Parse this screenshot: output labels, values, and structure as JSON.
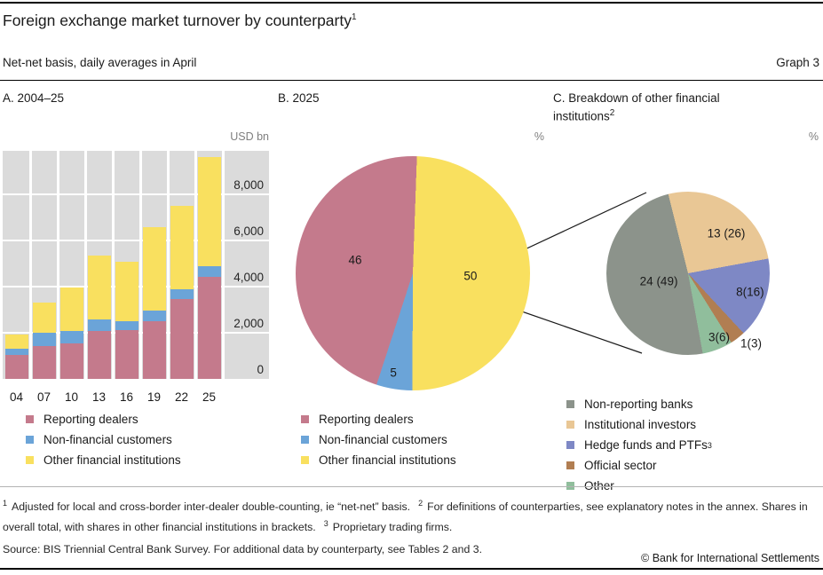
{
  "header": {
    "title": "Foreign exchange market turnover by counterparty",
    "title_sup": "1",
    "subtitle": "Net-net basis, daily averages in April",
    "graph_label": "Graph 3"
  },
  "colors": {
    "reporting_dealers": "#C47A8C",
    "non_financial_customers": "#6BA4D8",
    "other_financial_institutions": "#F9E05F",
    "non_reporting_banks": "#8C938B",
    "institutional_investors": "#E9C795",
    "hedge_funds_ptfs": "#7E88C5",
    "official_sector": "#B17E52",
    "other": "#90BE9C",
    "plot_background": "#DBDBDB",
    "gridline": "#FFFFFF"
  },
  "chart_data": [
    {
      "panel": "A",
      "type": "bar",
      "stacked": true,
      "title": "A. 2004–25",
      "unit": "USD bn",
      "categories": [
        "04",
        "07",
        "10",
        "13",
        "16",
        "19",
        "22",
        "25"
      ],
      "series": [
        {
          "name": "Reporting dealers",
          "color": "#C47A8C",
          "values": [
            1025,
            1429,
            1549,
            2089,
            2128,
            2501,
            3453,
            4416
          ]
        },
        {
          "name": "Non-financial customers",
          "color": "#6BA4D8",
          "values": [
            271,
            565,
            517,
            482,
            355,
            461,
            450,
            480
          ]
        },
        {
          "name": "Other financial institutions",
          "color": "#F9E05F",
          "values": [
            638,
            1330,
            1907,
            2786,
            2583,
            3619,
            3603,
            4704
          ]
        }
      ],
      "ylim": [
        0,
        9885
      ],
      "yticks": [
        {
          "value": 0,
          "label": "0"
        },
        {
          "value": 2000,
          "label": "2,000"
        },
        {
          "value": 4000,
          "label": "4,000"
        },
        {
          "value": 6000,
          "label": "6,000"
        },
        {
          "value": 8000,
          "label": "8,000"
        }
      ],
      "grid": true,
      "legend_position": "below",
      "legend": [
        {
          "label": "Reporting dealers",
          "color": "#C47A8C"
        },
        {
          "label": "Non-financial customers",
          "color": "#6BA4D8"
        },
        {
          "label": "Other financial institutions",
          "color": "#F9E05F"
        }
      ]
    },
    {
      "panel": "B",
      "type": "pie",
      "title": "B. 2025",
      "unit": "%",
      "start_angle_deg": 2,
      "slices": [
        {
          "name": "Other financial institutions",
          "value": 50,
          "label": "50",
          "color": "#F9E05F",
          "label_pos": [
            74.6,
            51.0
          ]
        },
        {
          "name": "Non-financial customers",
          "value": 5,
          "label": "5",
          "color": "#6BA4D8",
          "label_pos": [
            41.7,
            92.5
          ]
        },
        {
          "name": "Reporting dealers",
          "value": 46,
          "label": "46",
          "color": "#C47A8C",
          "label_pos": [
            25.4,
            44.3
          ]
        }
      ],
      "legend": [
        {
          "label": "Reporting dealers",
          "color": "#C47A8C"
        },
        {
          "label": "Non-financial customers",
          "color": "#6BA4D8"
        },
        {
          "label": "Other financial institutions",
          "color": "#F9E05F"
        }
      ]
    },
    {
      "panel": "C",
      "type": "pie",
      "title": "C. Breakdown of other financial institutions",
      "title_sup": "2",
      "unit": "%",
      "start_angle_deg": -14,
      "slices": [
        {
          "name": "Institutional investors",
          "overall_share": 13,
          "value": 26,
          "label": "13 (26)",
          "color": "#E9C795",
          "label_pos": [
            73.4,
            25.5
          ]
        },
        {
          "name": "Hedge funds and PTFs",
          "overall_share": 8,
          "value": 16,
          "label": "8(16)",
          "color": "#7E88C5",
          "label_pos": [
            88.0,
            61.4
          ]
        },
        {
          "name": "Official sector",
          "overall_share": 1,
          "value": 3,
          "label": "1(3)",
          "color": "#B17E52",
          "label_pos": [
            88.6,
            92.9
          ]
        },
        {
          "name": "Other",
          "overall_share": 3,
          "value": 6,
          "label": "3(6)",
          "color": "#90BE9C",
          "label_pos": [
            69.0,
            89.1
          ]
        },
        {
          "name": "Non-reporting banks",
          "overall_share": 24,
          "value": 49,
          "label": "24 (49)",
          "color": "#8C938B",
          "label_pos": [
            32.1,
            54.9
          ]
        }
      ],
      "legend": [
        {
          "label": "Non-reporting banks",
          "color": "#8C938B"
        },
        {
          "label": "Institutional investors",
          "color": "#E9C795"
        },
        {
          "label": "Hedge funds and PTFs",
          "sup": "3",
          "color": "#7E88C5"
        },
        {
          "label": "Official sector",
          "color": "#B17E52"
        },
        {
          "label": "Other",
          "color": "#90BE9C"
        }
      ]
    }
  ],
  "footnotes": [
    {
      "marker": "1",
      "text": "Adjusted for local and cross-border inter-dealer double-counting, ie “net-net” basis."
    },
    {
      "marker": "2",
      "text": "For definitions of counterparties, see explanatory notes in the annex. Shares in overall total, with shares in other financial institutions in brackets."
    },
    {
      "marker": "3",
      "text": "Proprietary trading firms."
    }
  ],
  "source": "Source: BIS Triennial Central Bank Survey. For additional data by counterparty, see Tables 2 and 3.",
  "copyright": "© Bank for International Settlements"
}
